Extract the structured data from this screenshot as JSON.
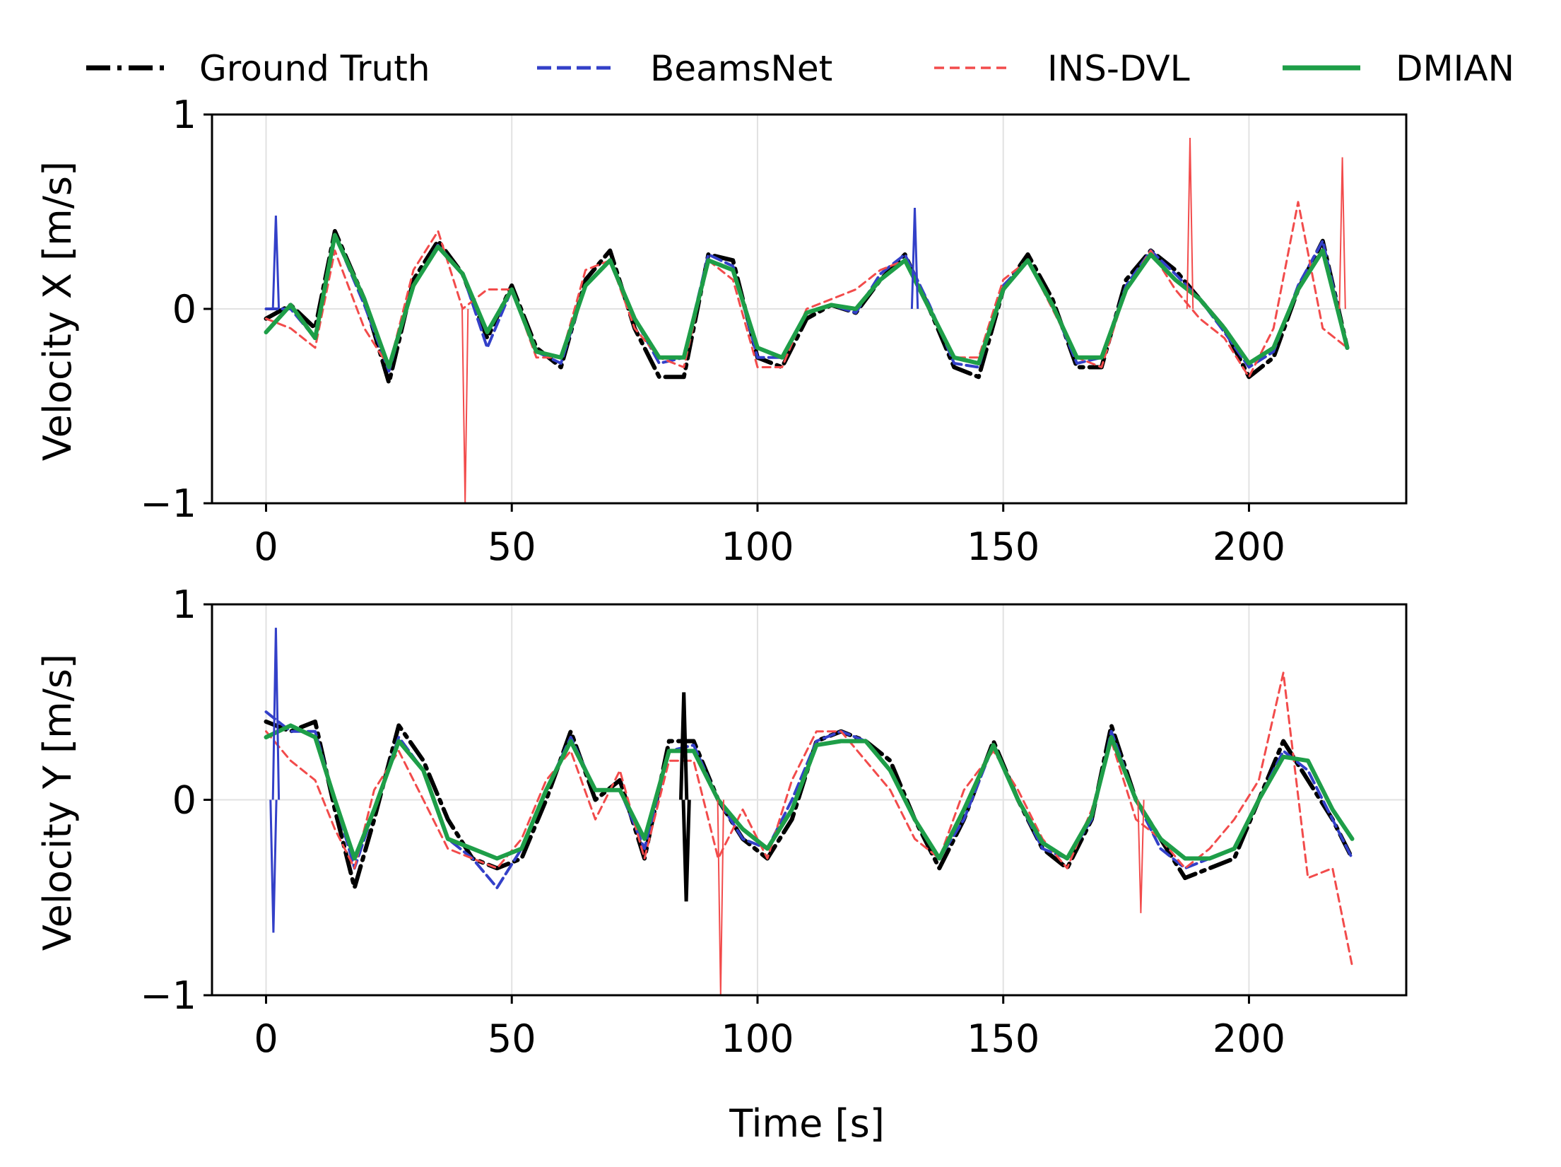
{
  "legend": {
    "items": [
      {
        "label": "Ground Truth",
        "color": "#000000",
        "style": "dashdot"
      },
      {
        "label": "BeamsNet",
        "color": "#3340c8",
        "style": "dashed"
      },
      {
        "label": "INS-DVL",
        "color": "#f24b4b",
        "style": "dashed"
      },
      {
        "label": "DMIAN",
        "color": "#1e9e48",
        "style": "solid"
      }
    ]
  },
  "chart_data": [
    {
      "type": "line",
      "ylabel": "Velocity X [m/s]",
      "xlabel": "",
      "xlim": [
        -11,
        232
      ],
      "ylim": [
        -1,
        1
      ],
      "xticks": [
        "0",
        "50",
        "100",
        "150",
        "200"
      ],
      "xtick_values": [
        0,
        50,
        100,
        150,
        200
      ],
      "yticks": [
        "−1",
        "0",
        "1"
      ],
      "ytick_values": [
        -1,
        0,
        1
      ],
      "grid": true,
      "x": [
        0,
        5,
        10,
        14,
        20,
        25,
        30,
        35,
        40,
        45,
        50,
        55,
        60,
        65,
        70,
        75,
        80,
        85,
        90,
        95,
        100,
        105,
        110,
        115,
        120,
        125,
        130,
        135,
        140,
        145,
        150,
        155,
        160,
        165,
        170,
        175,
        180,
        185,
        190,
        195,
        200,
        205,
        210,
        215,
        220
      ],
      "series": [
        {
          "name": "Ground Truth",
          "values": [
            -0.05,
            0.02,
            -0.1,
            0.4,
            0.05,
            -0.38,
            0.15,
            0.35,
            0.18,
            -0.15,
            0.12,
            -0.2,
            -0.3,
            0.15,
            0.3,
            -0.1,
            -0.35,
            -0.35,
            0.28,
            0.25,
            -0.25,
            -0.3,
            -0.05,
            0.02,
            -0.02,
            0.15,
            0.28,
            0.0,
            -0.3,
            -0.35,
            0.1,
            0.28,
            0.05,
            -0.3,
            -0.3,
            0.15,
            0.3,
            0.2,
            0.05,
            -0.1,
            -0.35,
            -0.25,
            0.1,
            0.35,
            -0.2
          ]
        },
        {
          "name": "BeamsNet",
          "values": [
            0.0,
            0.0,
            -0.15,
            0.38,
            0.02,
            -0.32,
            0.12,
            0.33,
            0.18,
            -0.2,
            0.1,
            -0.22,
            -0.28,
            0.12,
            0.25,
            -0.05,
            -0.28,
            -0.25,
            0.28,
            0.22,
            -0.25,
            -0.25,
            -0.02,
            0.02,
            -0.02,
            0.18,
            0.28,
            0.02,
            -0.28,
            -0.3,
            0.12,
            0.25,
            0.02,
            -0.28,
            -0.25,
            0.12,
            0.3,
            0.18,
            0.05,
            -0.12,
            -0.3,
            -0.22,
            0.12,
            0.35,
            -0.2
          ]
        },
        {
          "name": "INS-DVL",
          "values": [
            -0.05,
            -0.1,
            -0.2,
            0.3,
            -0.1,
            -0.3,
            0.2,
            0.4,
            0.0,
            0.1,
            0.1,
            -0.25,
            -0.25,
            0.2,
            0.25,
            -0.1,
            -0.25,
            -0.3,
            0.25,
            0.15,
            -0.3,
            -0.3,
            0.0,
            0.05,
            0.1,
            0.2,
            0.25,
            0.0,
            -0.25,
            -0.25,
            0.15,
            0.25,
            0.0,
            -0.25,
            -0.3,
            0.1,
            0.3,
            0.1,
            -0.05,
            -0.15,
            -0.35,
            -0.1,
            0.55,
            -0.1,
            -0.2
          ]
        },
        {
          "name": "DMIAN",
          "values": [
            -0.12,
            0.02,
            -0.15,
            0.38,
            0.05,
            -0.3,
            0.12,
            0.32,
            0.18,
            -0.12,
            0.1,
            -0.22,
            -0.25,
            0.12,
            0.25,
            -0.05,
            -0.25,
            -0.25,
            0.25,
            0.2,
            -0.2,
            -0.25,
            -0.02,
            0.02,
            0.0,
            0.15,
            0.25,
            0.0,
            -0.25,
            -0.28,
            0.1,
            0.25,
            0.02,
            -0.25,
            -0.25,
            0.1,
            0.28,
            0.15,
            0.05,
            -0.1,
            -0.28,
            -0.2,
            0.1,
            0.3,
            -0.2
          ]
        }
      ],
      "spikes": [
        {
          "name": "INS-DVL",
          "x": 40.5,
          "y": -1.0
        },
        {
          "name": "INS-DVL",
          "x": 188,
          "y": 0.88
        },
        {
          "name": "INS-DVL",
          "x": 219,
          "y": 0.78
        },
        {
          "name": "BeamsNet",
          "x": 2,
          "y": 0.48
        },
        {
          "name": "BeamsNet",
          "x": 132,
          "y": 0.52
        }
      ]
    },
    {
      "type": "line",
      "ylabel": "Velocity Y [m/s]",
      "xlabel": "Time [s]",
      "xlim": [
        -11,
        232
      ],
      "ylim": [
        -1,
        1
      ],
      "xticks": [
        "0",
        "50",
        "100",
        "150",
        "200"
      ],
      "xtick_values": [
        0,
        50,
        100,
        150,
        200
      ],
      "yticks": [
        "−1",
        "0",
        "1"
      ],
      "ytick_values": [
        -1,
        0,
        1
      ],
      "grid": true,
      "x": [
        0,
        5,
        10,
        14,
        18,
        22,
        27,
        32,
        37,
        42,
        47,
        52,
        57,
        62,
        67,
        72,
        77,
        82,
        87,
        92,
        97,
        102,
        107,
        112,
        117,
        122,
        127,
        132,
        137,
        142,
        148,
        153,
        158,
        163,
        168,
        172,
        177,
        182,
        187,
        192,
        197,
        202,
        207,
        212,
        217,
        221
      ],
      "series": [
        {
          "name": "Ground Truth",
          "values": [
            0.4,
            0.35,
            0.4,
            -0.05,
            -0.45,
            -0.1,
            0.38,
            0.2,
            -0.1,
            -0.3,
            -0.35,
            -0.3,
            0.0,
            0.35,
            0.0,
            0.1,
            -0.3,
            0.3,
            0.3,
            0.0,
            -0.2,
            -0.3,
            -0.1,
            0.3,
            0.35,
            0.3,
            0.2,
            -0.1,
            -0.35,
            -0.1,
            0.3,
            0.0,
            -0.25,
            -0.35,
            -0.1,
            0.38,
            0.0,
            -0.2,
            -0.4,
            -0.35,
            -0.3,
            0.0,
            0.3,
            0.1,
            -0.1,
            -0.3
          ]
        },
        {
          "name": "BeamsNet",
          "values": [
            0.45,
            0.35,
            0.35,
            0.0,
            -0.35,
            -0.05,
            0.32,
            0.15,
            -0.2,
            -0.3,
            -0.45,
            -0.25,
            0.05,
            0.32,
            0.05,
            0.05,
            -0.25,
            0.25,
            0.28,
            0.0,
            -0.2,
            -0.25,
            0.0,
            0.3,
            0.35,
            0.3,
            0.15,
            -0.1,
            -0.3,
            -0.1,
            0.28,
            0.0,
            -0.25,
            -0.3,
            -0.1,
            0.35,
            0.0,
            -0.25,
            -0.35,
            -0.3,
            -0.25,
            0.0,
            0.25,
            0.15,
            -0.1,
            -0.3
          ]
        },
        {
          "name": "INS-DVL",
          "values": [
            0.35,
            0.2,
            0.1,
            -0.15,
            -0.35,
            0.05,
            0.25,
            0.0,
            -0.25,
            -0.3,
            -0.35,
            -0.2,
            0.1,
            0.25,
            -0.1,
            0.15,
            -0.3,
            0.2,
            0.2,
            -0.3,
            -0.05,
            -0.3,
            0.1,
            0.35,
            0.35,
            0.2,
            0.05,
            -0.2,
            -0.3,
            0.05,
            0.25,
            0.05,
            -0.2,
            -0.35,
            -0.05,
            0.3,
            -0.1,
            -0.2,
            -0.35,
            -0.25,
            -0.1,
            0.1,
            0.65,
            -0.4,
            -0.35,
            -0.85
          ]
        },
        {
          "name": "DMIAN",
          "values": [
            0.32,
            0.38,
            0.32,
            0.0,
            -0.3,
            -0.05,
            0.3,
            0.15,
            -0.2,
            -0.25,
            -0.3,
            -0.25,
            0.05,
            0.3,
            0.05,
            0.05,
            -0.2,
            0.25,
            0.25,
            0.0,
            -0.15,
            -0.25,
            -0.05,
            0.28,
            0.3,
            0.3,
            0.15,
            -0.1,
            -0.3,
            -0.05,
            0.28,
            0.0,
            -0.22,
            -0.3,
            -0.08,
            0.32,
            0.0,
            -0.2,
            -0.3,
            -0.3,
            -0.25,
            0.0,
            0.22,
            0.2,
            -0.05,
            -0.2
          ]
        }
      ],
      "spikes": [
        {
          "name": "BeamsNet",
          "x": 2,
          "y": 0.88
        },
        {
          "name": "BeamsNet",
          "x": 1.5,
          "y": -0.68
        },
        {
          "name": "INS-DVL",
          "x": 92.5,
          "y": -1.0
        },
        {
          "name": "INS-DVL",
          "x": 178,
          "y": -0.58
        },
        {
          "name": "Ground Truth",
          "x": 85,
          "y": 0.55
        },
        {
          "name": "Ground Truth",
          "x": 85.5,
          "y": -0.52
        }
      ]
    }
  ]
}
